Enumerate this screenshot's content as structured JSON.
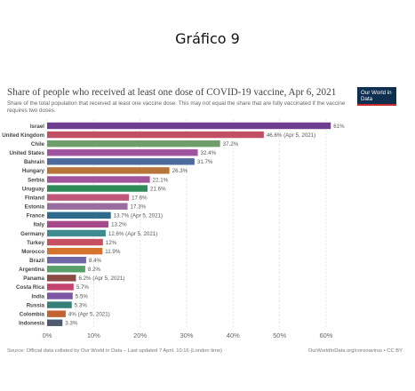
{
  "heading": "Gráfico 9",
  "logo_text": "Our World in Data",
  "footer": {
    "source": "Source: Official data collated by Our World in Data – Last updated 7 April, 10:16 (London time)",
    "license": "OurWorldInData.org/coronavirus • CC BY"
  },
  "chart_data": {
    "type": "bar",
    "orientation": "horizontal",
    "title": "Share of people who received at least one dose of COVID-19 vaccine, Apr 6, 2021",
    "subtitle": "Share of the total population that received at least one vaccine dose. This may not equal the share that are fully vaccinated if the vaccine requires two doses.",
    "xlim": [
      0,
      60
    ],
    "x_ticks": [
      "0%",
      "10%",
      "20%",
      "30%",
      "40%",
      "50%",
      "60%"
    ],
    "grid": true,
    "categories": [
      "Israel",
      "United Kingdom",
      "Chile",
      "United States",
      "Bahrain",
      "Hungary",
      "Serbia",
      "Uruguay",
      "Finland",
      "Estonia",
      "France",
      "Italy",
      "Germany",
      "Turkey",
      "Morocco",
      "Brazil",
      "Argentina",
      "Panama",
      "Costa Rica",
      "India",
      "Russia",
      "Colombia",
      "Indonesia"
    ],
    "values": [
      61,
      46.6,
      37.2,
      32.4,
      31.7,
      26.3,
      22.1,
      21.6,
      17.6,
      17.3,
      13.7,
      13.2,
      12.6,
      12,
      11.9,
      8.4,
      8.2,
      6.2,
      5.7,
      5.5,
      5.3,
      4,
      3.3
    ],
    "labels": [
      "61%",
      "46.6% (Apr 5, 2021)",
      "37.2%",
      "32.4%",
      "31.7%",
      "26.3%",
      "22.1%",
      "21.6%",
      "17.6%",
      "17.3%",
      "13.7% (Apr 5, 2021)",
      "13.2%",
      "12.6% (Apr 5, 2021)",
      "12%",
      "11.9%",
      "8.4%",
      "8.2%",
      "6.2% (Apr 5, 2021)",
      "5.7%",
      "5.5%",
      "5.3%",
      "4% (Apr 5, 2021)",
      "3.3%"
    ],
    "colors": [
      "#6d3e91",
      "#c15065",
      "#6f9e6a",
      "#a054a0",
      "#4c6a9c",
      "#b87539",
      "#a2559c",
      "#2e8a58",
      "#c05778",
      "#996d9e",
      "#2f6b8c",
      "#a74a8c",
      "#3f8b8f",
      "#c75061",
      "#d4742e",
      "#6f68a8",
      "#58a068",
      "#8c4a45",
      "#c4446e",
      "#7c56a3",
      "#378078",
      "#c56232",
      "#4e5a6c"
    ]
  }
}
